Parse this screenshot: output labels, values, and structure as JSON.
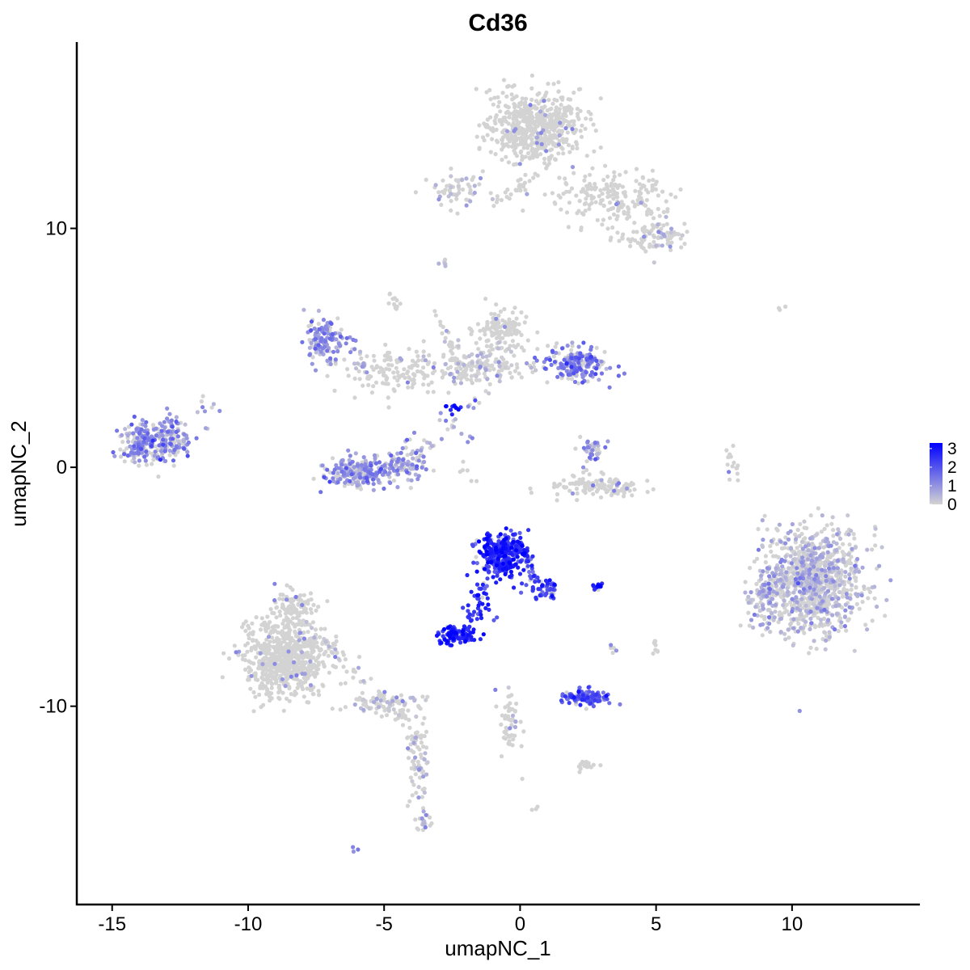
{
  "chart_data": {
    "type": "scatter",
    "title": "Cd36",
    "xlabel": "umapNC_1",
    "ylabel": "umapNC_2",
    "xlim": [
      -16.3,
      14.7
    ],
    "ylim": [
      -18.3,
      17.8
    ],
    "xticks": [
      -15,
      -10,
      -5,
      0,
      5,
      10
    ],
    "yticks": [
      -10,
      0,
      10
    ],
    "grid": false,
    "legend": {
      "placement": "right",
      "type": "colorbar",
      "range": [
        0,
        3.3
      ],
      "labels": [
        "3",
        "2",
        "1",
        "0"
      ],
      "label_values": [
        3,
        2,
        1,
        0
      ],
      "low_color": "#d3d3d3",
      "high_color": "#0000ff"
    },
    "point_color_low": "#d3d3d3",
    "point_color_high": "#0000ff",
    "clusters": [
      {
        "cx": 0.5,
        "cy": 14.3,
        "sx": 1.1,
        "sy": 1.0,
        "n": 600,
        "expr": 0.0
      },
      {
        "cx": 3.4,
        "cy": 11.2,
        "sx": 1.4,
        "sy": 0.8,
        "n": 200,
        "expr": 0.0
      },
      {
        "cx": 5.3,
        "cy": 9.7,
        "sx": 0.6,
        "sy": 0.4,
        "n": 60,
        "expr": 0.05
      },
      {
        "cx": -2.4,
        "cy": 11.6,
        "sx": 0.8,
        "sy": 0.5,
        "n": 60,
        "expr": 0.15
      },
      {
        "cx": -0.7,
        "cy": 5.8,
        "sx": 0.6,
        "sy": 0.5,
        "n": 120,
        "expr": 0.0
      },
      {
        "cx": -1.3,
        "cy": 4.3,
        "sx": 1.4,
        "sy": 0.6,
        "n": 170,
        "expr": 0.05
      },
      {
        "cx": -4.5,
        "cy": 4.0,
        "sx": 1.3,
        "sy": 0.6,
        "n": 130,
        "expr": 0.0
      },
      {
        "cx": -7.2,
        "cy": 5.3,
        "sx": 0.5,
        "sy": 0.7,
        "n": 130,
        "expr": 1.0
      },
      {
        "cx": 2.1,
        "cy": 4.3,
        "sx": 0.7,
        "sy": 0.5,
        "n": 180,
        "expr": 1.4
      },
      {
        "cx": -13.8,
        "cy": 1.0,
        "sx": 0.6,
        "sy": 0.6,
        "n": 180,
        "expr": 1.1
      },
      {
        "cx": -12.8,
        "cy": 1.3,
        "sx": 0.5,
        "sy": 0.6,
        "n": 110,
        "expr": 1.0
      },
      {
        "cx": -5.8,
        "cy": -0.2,
        "sx": 0.9,
        "sy": 0.4,
        "n": 230,
        "expr": 1.0
      },
      {
        "cx": -4.2,
        "cy": 0.2,
        "sx": 0.5,
        "sy": 0.6,
        "n": 80,
        "expr": 0.7
      },
      {
        "cx": 2.6,
        "cy": 0.7,
        "sx": 0.3,
        "sy": 0.4,
        "n": 40,
        "expr": 0.9
      },
      {
        "cx": 2.9,
        "cy": -0.8,
        "sx": 1.2,
        "sy": 0.3,
        "n": 120,
        "expr": 0.0
      },
      {
        "cx": -0.6,
        "cy": -3.6,
        "sx": 0.6,
        "sy": 0.6,
        "n": 320,
        "expr": 2.6
      },
      {
        "cx": 0.7,
        "cy": -4.9,
        "sx": 0.5,
        "sy": 0.4,
        "n": 40,
        "expr": 2.1
      },
      {
        "cx": -1.5,
        "cy": -5.8,
        "sx": 0.4,
        "sy": 0.6,
        "n": 30,
        "expr": 2.5
      },
      {
        "cx": -2.4,
        "cy": -7.0,
        "sx": 0.45,
        "sy": 0.25,
        "n": 110,
        "expr": 2.7
      },
      {
        "cx": 2.9,
        "cy": -5.0,
        "sx": 0.15,
        "sy": 0.1,
        "n": 12,
        "expr": 3.0
      },
      {
        "cx": 2.4,
        "cy": -9.6,
        "sx": 0.6,
        "sy": 0.2,
        "n": 120,
        "expr": 1.9
      },
      {
        "cx": 2.4,
        "cy": -12.5,
        "sx": 0.3,
        "sy": 0.2,
        "n": 20,
        "expr": 0.0
      },
      {
        "cx": -8.6,
        "cy": -8.0,
        "sx": 1.0,
        "sy": 1.1,
        "n": 700,
        "expr": 0.02
      },
      {
        "cx": -8.3,
        "cy": -5.8,
        "sx": 0.5,
        "sy": 0.4,
        "n": 80,
        "expr": 0.0
      },
      {
        "cx": -5.0,
        "cy": -9.9,
        "sx": 0.9,
        "sy": 0.35,
        "n": 90,
        "expr": 0.08
      },
      {
        "cx": -3.8,
        "cy": -12.4,
        "sx": 0.3,
        "sy": 1.3,
        "n": 70,
        "expr": 0.05
      },
      {
        "cx": -3.5,
        "cy": -14.8,
        "sx": 0.2,
        "sy": 0.4,
        "n": 20,
        "expr": 0.3
      },
      {
        "cx": -0.4,
        "cy": -11.0,
        "sx": 0.25,
        "sy": 0.9,
        "n": 40,
        "expr": 0.0
      },
      {
        "cx": 10.8,
        "cy": -4.8,
        "sx": 1.2,
        "sy": 1.5,
        "n": 1000,
        "expr": 0.3
      },
      {
        "cx": 9.0,
        "cy": -5.6,
        "sx": 0.35,
        "sy": 0.8,
        "n": 80,
        "expr": 0.6
      },
      {
        "cx": 7.8,
        "cy": 0.0,
        "sx": 0.15,
        "sy": 0.5,
        "n": 15,
        "expr": 0.0
      },
      {
        "cx": 9.6,
        "cy": 6.7,
        "sx": 0.2,
        "sy": 0.1,
        "n": 4,
        "expr": 0.0
      },
      {
        "cx": -4.6,
        "cy": 6.9,
        "sx": 0.2,
        "sy": 0.3,
        "n": 12,
        "expr": 0.0
      },
      {
        "cx": 5.0,
        "cy": -7.6,
        "sx": 0.1,
        "sy": 0.3,
        "n": 8,
        "expr": 0.0
      },
      {
        "cx": 3.4,
        "cy": -7.6,
        "sx": 0.1,
        "sy": 0.2,
        "n": 5,
        "expr": 0.5
      },
      {
        "cx": 0.6,
        "cy": -14.3,
        "sx": 0.1,
        "sy": 0.1,
        "n": 3,
        "expr": 0.0
      },
      {
        "cx": -6.1,
        "cy": -16.0,
        "sx": 0.1,
        "sy": 0.1,
        "n": 3,
        "expr": 1.0
      },
      {
        "cx": -2.8,
        "cy": 8.6,
        "sx": 0.15,
        "sy": 0.2,
        "n": 6,
        "expr": 0.2
      },
      {
        "cx": -11.4,
        "cy": 2.2,
        "sx": 0.3,
        "sy": 0.5,
        "n": 10,
        "expr": 0.8
      }
    ],
    "paths": [
      {
        "from": [
          -0.9,
          11.0
        ],
        "to": [
          1.2,
          12.9
        ],
        "n": 30,
        "expr": 0.0
      },
      {
        "from": [
          3.3,
          9.6
        ],
        "to": [
          5.2,
          9.2
        ],
        "n": 25,
        "expr": 0.0
      },
      {
        "from": [
          -2.3,
          4.0
        ],
        "to": [
          -3.1,
          6.7
        ],
        "n": 25,
        "expr": 0.0
      },
      {
        "from": [
          -1.2,
          3.2
        ],
        "to": [
          -3.5,
          0.8
        ],
        "n": 20,
        "expr": 0.4
      },
      {
        "from": [
          -6.2,
          5.2
        ],
        "to": [
          -5.6,
          3.8
        ],
        "n": 15,
        "expr": 0.5
      },
      {
        "from": [
          -7.8,
          -6.6
        ],
        "to": [
          -5.0,
          -9.7
        ],
        "n": 40,
        "expr": 0.05
      },
      {
        "from": [
          -4.5,
          -10.2
        ],
        "to": [
          -3.8,
          -11.6
        ],
        "n": 15,
        "expr": 0.0
      },
      {
        "from": [
          -0.8,
          -3.8
        ],
        "to": [
          -1.9,
          -6.3
        ],
        "n": 20,
        "expr": 2.4
      },
      {
        "from": [
          -0.5,
          -9.1
        ],
        "to": [
          -0.1,
          -11.5
        ],
        "n": 15,
        "expr": 0.1
      },
      {
        "from": [
          0.3,
          -3.9
        ],
        "to": [
          1.2,
          -5.5
        ],
        "n": 25,
        "expr": 1.8
      },
      {
        "from": [
          -2.6,
          2.5
        ],
        "to": [
          -2.2,
          2.4
        ],
        "n": 10,
        "expr": 2.9
      },
      {
        "from": [
          -3.4,
          2.4
        ],
        "to": [
          -1.5,
          0.8
        ],
        "n": 8,
        "expr": 1.2
      },
      {
        "from": [
          -2.3,
          0.2
        ],
        "to": [
          -1.6,
          -0.8
        ],
        "n": 6,
        "expr": 0.0
      }
    ]
  }
}
